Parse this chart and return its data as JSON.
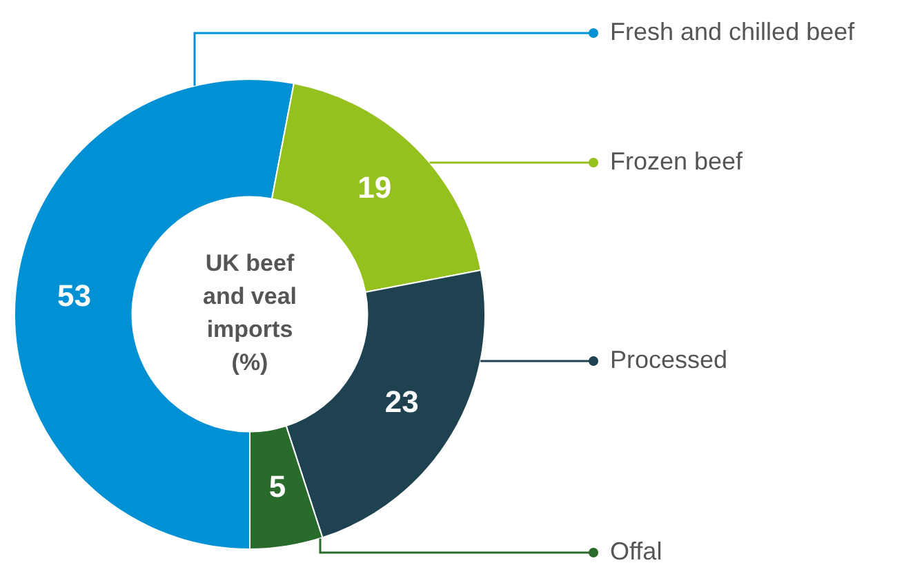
{
  "chart_data": {
    "type": "donut",
    "title": "UK beef and veal imports (%)",
    "categories": [
      "Fresh and chilled beef",
      "Frozen beef",
      "Processed",
      "Offal"
    ],
    "values": [
      53,
      19,
      23,
      5
    ],
    "colors": [
      "#0090d4",
      "#95c11f",
      "#1f4250",
      "#286b2a"
    ],
    "data_labels": true,
    "legend": "right"
  }
}
